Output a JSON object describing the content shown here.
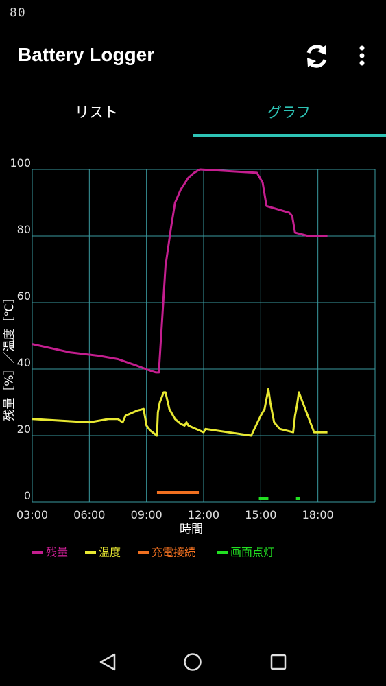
{
  "status_bar": {
    "text": "80"
  },
  "app_bar": {
    "title": "Battery Logger"
  },
  "tabs": [
    {
      "label": "リスト",
      "selected": false
    },
    {
      "label": "グラフ",
      "selected": true
    }
  ],
  "colors": {
    "accent": "#2ec4b6",
    "battery": "#c41e8f",
    "temperature": "#e8e832",
    "charging": "#f07020",
    "screen_on": "#22e022",
    "grid": "#3a9aa0"
  },
  "icons": {
    "refresh": "refresh-icon",
    "more": "more-vert-icon",
    "back": "back-triangle-icon",
    "home": "home-circle-icon",
    "recents": "recents-square-icon"
  },
  "chart_data": {
    "type": "line",
    "xlabel": "時間",
    "ylabel": "残量［%］／温度［℃］",
    "xlim": [
      3,
      21
    ],
    "ylim": [
      0,
      100
    ],
    "x_ticks": [
      3,
      6,
      9,
      12,
      15,
      18
    ],
    "x_tick_labels": [
      "03:00",
      "06:00",
      "09:00",
      "12:00",
      "15:00",
      "18:00"
    ],
    "y_ticks": [
      0,
      20,
      40,
      60,
      80,
      100
    ],
    "y_tick_labels": [
      "0",
      "20",
      "40",
      "60",
      "80",
      "100"
    ],
    "grid": true,
    "legend_position": "bottom-left",
    "series": [
      {
        "name": "残量",
        "color_key": "battery",
        "x": [
          3.0,
          5.0,
          6.5,
          7.5,
          8.5,
          9.2,
          9.5,
          9.65,
          10.0,
          10.3,
          10.5,
          10.8,
          11.2,
          11.5,
          11.8,
          14.8,
          15.1,
          15.3,
          16.5,
          16.65,
          16.8,
          17.5,
          18.5
        ],
        "y": [
          47.5,
          45,
          44,
          43,
          41,
          39.5,
          39,
          39,
          71,
          83,
          90,
          94,
          97.5,
          99,
          100,
          99,
          96,
          89,
          87,
          86,
          81,
          80,
          80
        ]
      },
      {
        "name": "温度",
        "color_key": "temperature",
        "x": [
          3.0,
          6.0,
          7.0,
          7.5,
          7.75,
          7.9,
          8.5,
          8.85,
          9.0,
          9.2,
          9.55,
          9.6,
          9.7,
          9.9,
          10.0,
          10.2,
          10.5,
          10.8,
          11.0,
          11.1,
          11.2,
          11.4,
          12.0,
          12.1,
          14.5,
          15.0,
          15.2,
          15.4,
          15.5,
          15.7,
          16.0,
          16.7,
          16.8,
          16.9,
          17.0,
          17.8,
          18.5
        ],
        "y": [
          25,
          24,
          25,
          25,
          24,
          26,
          27.5,
          28,
          23,
          21.5,
          20,
          27,
          30,
          33,
          33,
          28,
          25,
          23.5,
          23,
          24,
          23,
          22.5,
          21,
          22,
          20,
          26,
          28,
          34,
          30,
          24,
          22,
          21,
          26,
          29,
          33,
          21,
          21
        ]
      },
      {
        "name": "充電接続",
        "color_key": "charging",
        "type": "interval",
        "intervals": [
          [
            9.55,
            11.75
          ]
        ]
      },
      {
        "name": "画面点灯",
        "color_key": "screen_on",
        "type": "interval",
        "intervals": [
          [
            14.9,
            15.4
          ],
          [
            16.85,
            17.05
          ]
        ]
      }
    ]
  }
}
